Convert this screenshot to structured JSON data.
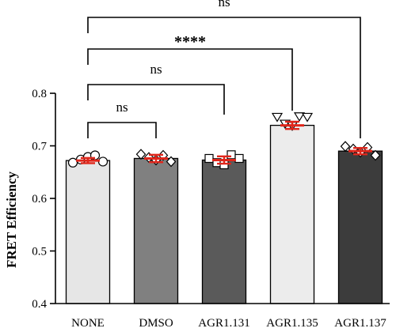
{
  "chart_data": {
    "type": "bar",
    "ylabel": "FRET Efficiency",
    "xlabel": "",
    "ylim": [
      0.4,
      0.8
    ],
    "yticks": [
      0.4,
      0.5,
      0.6,
      0.7,
      0.8
    ],
    "ytick_labels": [
      "0.4",
      "0.5",
      "0.6",
      "0.7",
      "0.8"
    ],
    "categories": [
      "NONE",
      "DMSO",
      "AGR1.131",
      "AGR1.135",
      "AGR1.137"
    ],
    "values": [
      0.672,
      0.676,
      0.673,
      0.739,
      0.69
    ],
    "error": [
      0.005,
      0.007,
      0.007,
      0.007,
      0.006
    ],
    "bar_colors": [
      "#e6e6e6",
      "#808080",
      "#5a5a5a",
      "#ececec",
      "#3c3c3c"
    ],
    "error_bar_color": "#e0261b",
    "points": [
      {
        "marker": "circle",
        "values": [
          0.668,
          0.674,
          0.679,
          0.682,
          0.67
        ]
      },
      {
        "marker": "diamond",
        "values": [
          0.684,
          0.678,
          0.673,
          0.682,
          0.67
        ]
      },
      {
        "marker": "square",
        "values": [
          0.676,
          0.668,
          0.664,
          0.683,
          0.676
        ]
      },
      {
        "marker": "triangle-down",
        "values": [
          0.755,
          0.742,
          0.738,
          0.756,
          0.755
        ]
      },
      {
        "marker": "diamond",
        "values": [
          0.699,
          0.694,
          0.688,
          0.697,
          0.682
        ]
      }
    ],
    "comparisons": [
      {
        "from": "NONE",
        "to": "DMSO",
        "label": "ns"
      },
      {
        "from": "NONE",
        "to": "AGR1.131",
        "label": "ns"
      },
      {
        "from": "NONE",
        "to": "AGR1.135",
        "label": "****"
      },
      {
        "from": "NONE",
        "to": "AGR1.137",
        "label": "ns"
      }
    ]
  }
}
